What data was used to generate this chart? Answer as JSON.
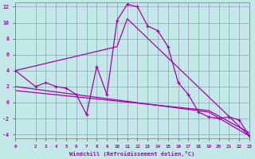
{
  "xlabel": "Windchill (Refroidissement éolien,°C)",
  "xlim": [
    0,
    23
  ],
  "ylim": [
    -4.5,
    12.5
  ],
  "yticks": [
    -4,
    -2,
    0,
    2,
    4,
    6,
    8,
    10,
    12
  ],
  "xticks": [
    0,
    2,
    3,
    4,
    5,
    6,
    7,
    8,
    9,
    10,
    11,
    12,
    13,
    14,
    15,
    16,
    17,
    18,
    19,
    20,
    21,
    22,
    23
  ],
  "bg_color": "#c2e8e8",
  "line_color": "#aa00aa",
  "grid_color": "#9999bb",
  "series1_x": [
    0,
    2,
    3,
    4,
    5,
    6,
    7,
    8,
    9,
    10,
    11,
    12,
    13,
    14,
    15,
    16,
    17,
    18,
    19,
    20,
    21,
    22,
    23
  ],
  "series1_y": [
    4.0,
    2.0,
    2.5,
    2.0,
    1.8,
    1.0,
    -1.5,
    4.5,
    1.0,
    10.3,
    12.3,
    12.0,
    9.6,
    9.0,
    7.0,
    2.5,
    1.0,
    -1.2,
    -1.8,
    -2.0,
    -1.8,
    -2.2,
    -4.2
  ],
  "series2_x": [
    0,
    10,
    11,
    23
  ],
  "series2_y": [
    4.0,
    7.0,
    10.5,
    -4.2
  ],
  "series3_x": [
    0,
    19,
    23
  ],
  "series3_y": [
    2.0,
    -1.2,
    -4.2
  ],
  "series4_x": [
    0,
    19,
    23
  ],
  "series4_y": [
    1.5,
    -1.0,
    -3.8
  ]
}
